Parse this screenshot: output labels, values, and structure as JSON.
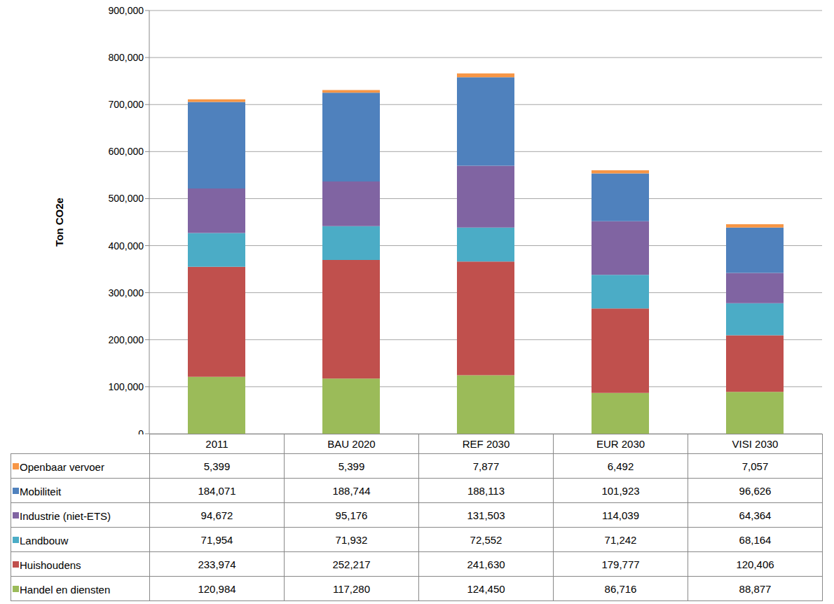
{
  "chart_data": {
    "type": "bar",
    "stacked": true,
    "grid": true,
    "y_label": "Ton CO2e",
    "categories": [
      "2011",
      "BAU 2020",
      "REF 2030",
      "EUR 2030",
      "VISI 2030"
    ],
    "ylim": [
      0,
      900000
    ],
    "yticks": [
      0,
      {
        "value": 100000,
        "label": "100,000"
      },
      {
        "value": 200000,
        "label": "200,000"
      },
      {
        "value": 300000,
        "label": "300,000"
      },
      {
        "value": 400000,
        "label": "400,000"
      },
      {
        "value": 500000,
        "label": "500,000"
      },
      {
        "value": 600000,
        "label": "600,000"
      },
      {
        "value": 700000,
        "label": "700,000"
      },
      {
        "value": 800000,
        "label": "800,000"
      },
      {
        "value": 900000,
        "label": "900,000"
      }
    ],
    "series": [
      {
        "name": "Handel en diensten",
        "color": "#9bbb59",
        "values": [
          120984,
          117280,
          124450,
          86716,
          88877
        ],
        "value_labels": [
          "120,984",
          "117,280",
          "124,450",
          "86,716",
          "88,877"
        ]
      },
      {
        "name": "Huishoudens",
        "color": "#c0504d",
        "values": [
          233974,
          252217,
          241630,
          179777,
          120406
        ],
        "value_labels": [
          "233,974",
          "252,217",
          "241,630",
          "179,777",
          "120,406"
        ]
      },
      {
        "name": "Landbouw",
        "color": "#4bacc6",
        "values": [
          71954,
          71932,
          72552,
          71242,
          68164
        ],
        "value_labels": [
          "71,954",
          "71,932",
          "72,552",
          "71,242",
          "68,164"
        ]
      },
      {
        "name": "Industrie (niet-ETS)",
        "color": "#8064a2",
        "values": [
          94672,
          95176,
          131503,
          114039,
          64364
        ],
        "value_labels": [
          "94,672",
          "95,176",
          "131,503",
          "114,039",
          "64,364"
        ]
      },
      {
        "name": "Mobiliteit",
        "color": "#4f81bd",
        "values": [
          184071,
          188744,
          188113,
          101923,
          96626
        ],
        "value_labels": [
          "184,071",
          "188,744",
          "188,113",
          "101,923",
          "96,626"
        ]
      },
      {
        "name": "Openbaar vervoer",
        "color": "#f79646",
        "values": [
          5399,
          5399,
          7877,
          6492,
          7057
        ],
        "value_labels": [
          "5,399",
          "5,399",
          "7,877",
          "6,492",
          "7,057"
        ]
      }
    ]
  }
}
